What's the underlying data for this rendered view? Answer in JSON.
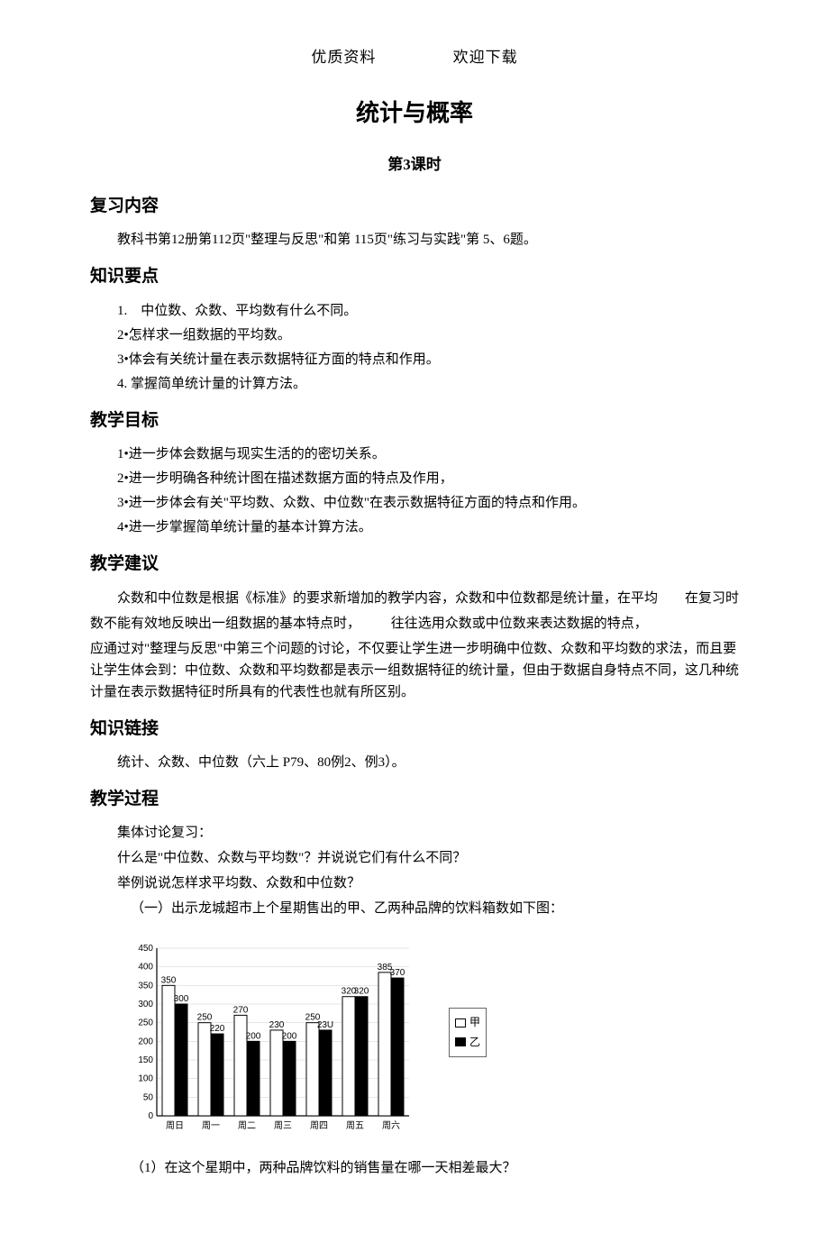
{
  "header": {
    "left": "优质资料",
    "right": "欢迎下载"
  },
  "title": "统计与概率",
  "lesson": "第3课时",
  "sections": {
    "fuxi": {
      "heading": "复习内容",
      "body": "教科书第12册第112页\"整理与反思\"和第 115页\"练习与实践\"第 5、6题。"
    },
    "zhishi": {
      "heading": "知识要点",
      "items": [
        "1.　中位数、众数、平均数有什么不同。",
        "2•怎样求一组数据的平均数。",
        "3•体会有关统计量在表示数据特征方面的特点和作用。",
        "4. 掌握简单统计量的计算方法。"
      ]
    },
    "mubiao": {
      "heading": "教学目标",
      "items": [
        "1•进一步体会数据与现实生活的的密切关系。",
        "2•进一步明确各种统计图在描述数据方面的特点及作用，",
        "3•进一步体会有关\"平均数、众数、中位数\"在表示数据特征方面的特点和作用。",
        "4•进一步掌握简单统计量的基本计算方法。"
      ]
    },
    "jianyi": {
      "heading": "教学建议",
      "float_note": "在复习时",
      "p1a": "众数和中位数是根据《标准》的要求新增加的教学内容，众数和中位数都是统计量，在平均",
      "p1b": "数不能有效地反映出一组数据的基本特点时，",
      "p1c": "往往选用众数或中位数来表达数据的特点，",
      "p2": "应通过对\"整理与反思\"中第三个问题的讨论，不仅要让学生进一步明确中位数、众数和平均数的求法，而且要让学生体会到：中位数、众数和平均数都是表示一组数据特征的统计量，但由于数据自身特点不同，这几种统计量在表示数据特征时所具有的代表性也就有所区别。"
    },
    "lianjie": {
      "heading": "知识链接",
      "body": "统计、众数、中位数（六上 P79、80例2、例3）。"
    },
    "guocheng": {
      "heading": "教学过程",
      "lines": [
        "集体讨论复习：",
        "什么是\"中位数、众数与平均数\"？并说说它们有什么不同？",
        "举例说说怎样求平均数、众数和中位数？",
        "（一）出示龙城超市上个星期售出的甲、乙两种品牌的饮料箱数如下图："
      ],
      "question": "（1）在这个星期中，两种品牌饮料的销售量在哪一天相差最大？"
    }
  },
  "chart": {
    "type": "bar",
    "categories": [
      "周日",
      "周一",
      "周二",
      "周三",
      "周四",
      "周五",
      "周六"
    ],
    "series": [
      {
        "name": "甲",
        "color": "#ffffff",
        "border": "#000000",
        "values": [
          350,
          250,
          270,
          230,
          250,
          320,
          385
        ]
      },
      {
        "name": "乙",
        "color": "#000000",
        "border": "#000000",
        "values": [
          300,
          220,
          200,
          200,
          230,
          320,
          370
        ]
      }
    ],
    "value_labels_a": [
      "350",
      "250",
      "270",
      "230",
      "250",
      "320",
      "385"
    ],
    "value_labels_b": [
      "300",
      "220",
      "200",
      "200",
      "230",
      "320",
      "370"
    ],
    "value_labels_b_override": {
      "3": "200",
      "4": "23U"
    },
    "ylim": [
      0,
      450
    ],
    "ytick_step": 50,
    "yticks": [
      "0",
      "50",
      "100",
      "150",
      "200",
      "250",
      "300",
      "350",
      "400",
      "450"
    ],
    "axis_color": "#000000",
    "grid_color": "#cccccc",
    "label_fontsize": 10,
    "value_fontsize": 10,
    "bar_group_width": 0.7,
    "legend": {
      "a": "甲",
      "b": "乙"
    }
  }
}
